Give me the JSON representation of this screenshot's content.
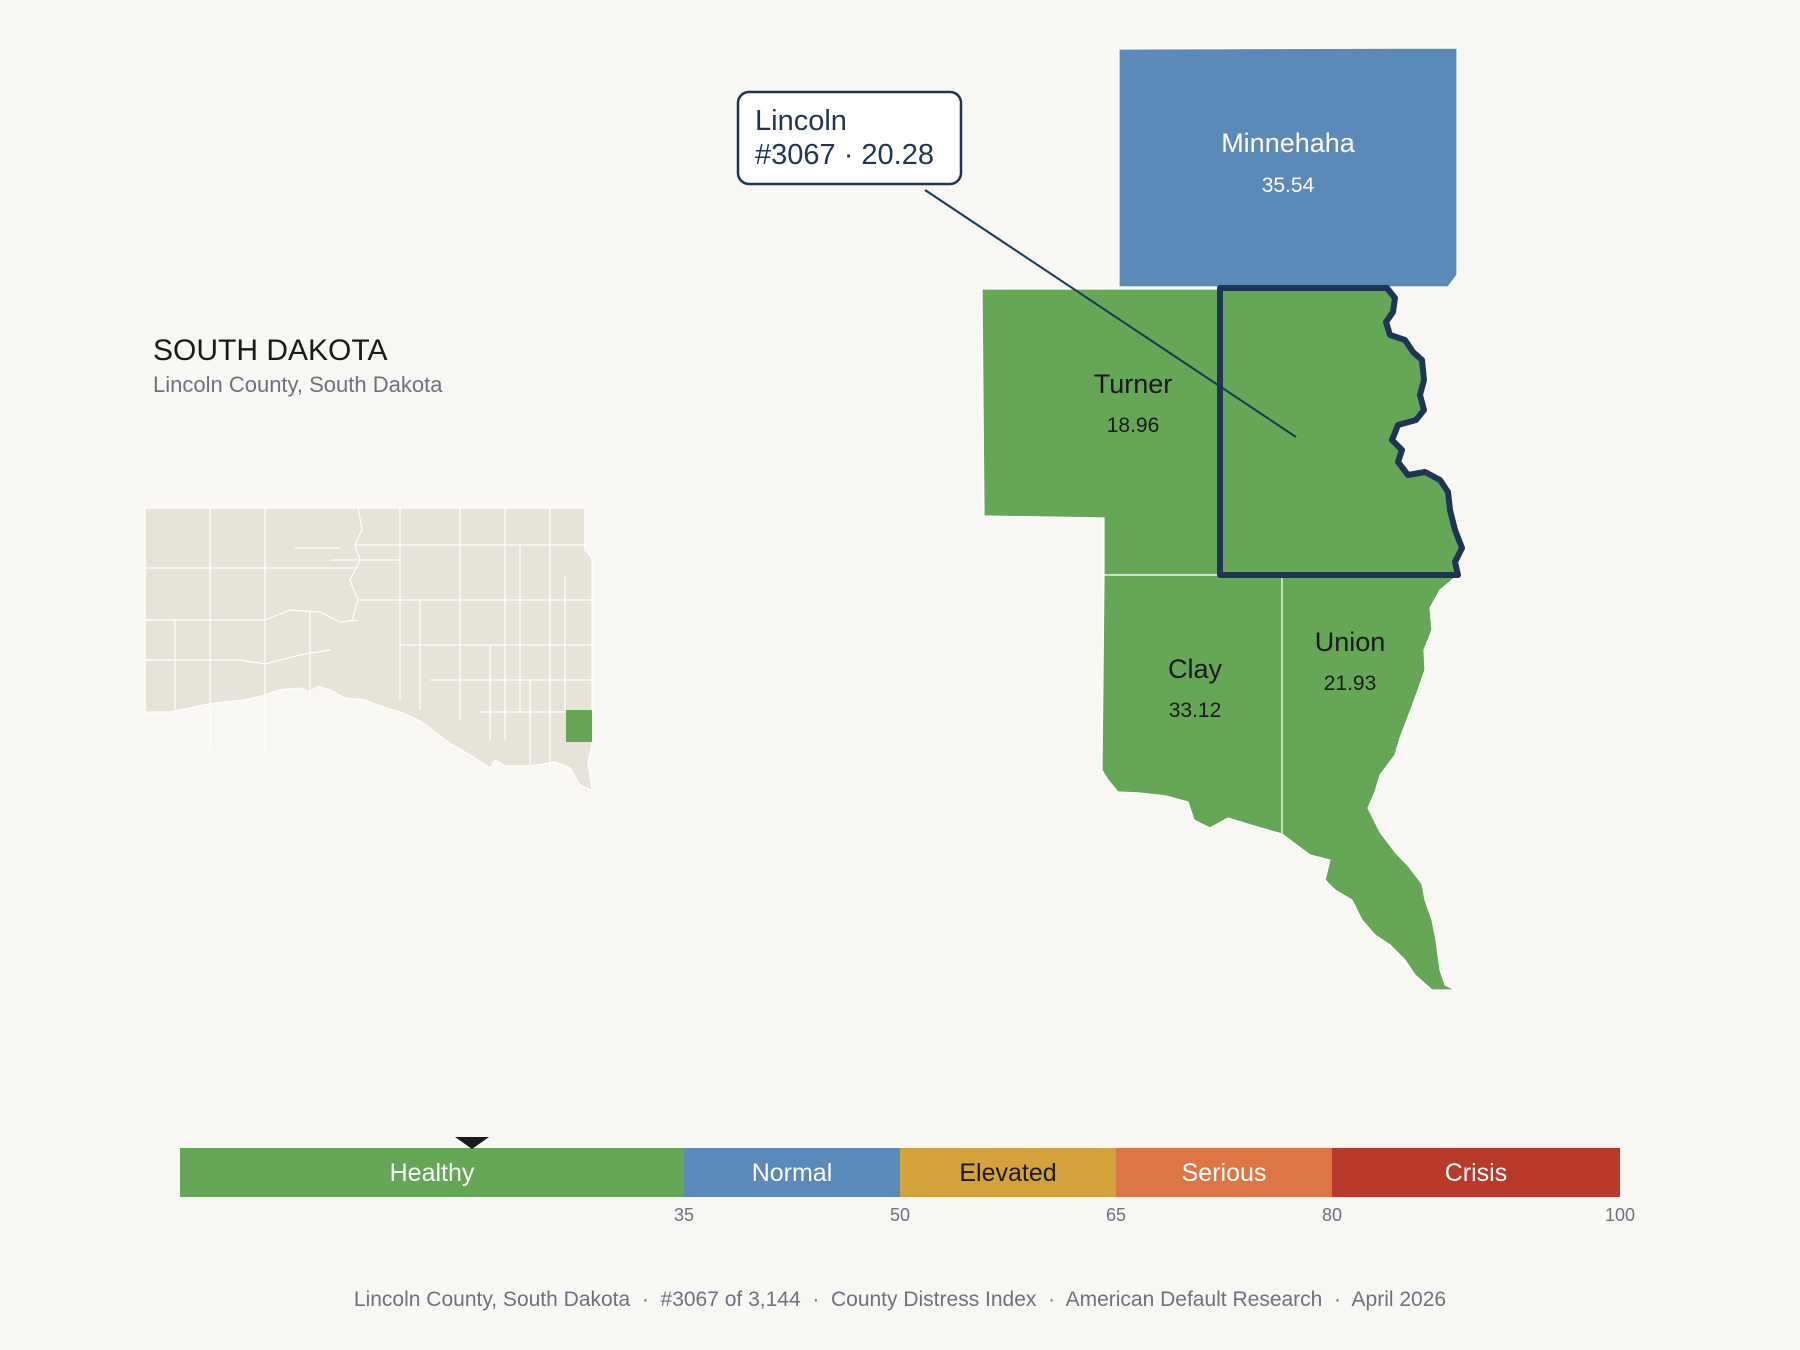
{
  "header": {
    "state": "SOUTH DAKOTA",
    "subtitle": "Lincoln County, South Dakota"
  },
  "callout": {
    "county": "Lincoln",
    "detail": "#3067 · 20.28"
  },
  "counties": [
    {
      "id": "minnehaha",
      "name": "Minnehaha",
      "value": "35.54",
      "color": "#5b8ab9"
    },
    {
      "id": "turner",
      "name": "Turner",
      "value": "18.96",
      "color": "#66a657"
    },
    {
      "id": "lincoln",
      "name": "Lincoln",
      "value": "20.28",
      "color": "#66a657",
      "selected": true
    },
    {
      "id": "clay",
      "name": "Clay",
      "value": "33.12",
      "color": "#66a657"
    },
    {
      "id": "union",
      "name": "Union",
      "value": "21.93",
      "color": "#66a657"
    }
  ],
  "scale": {
    "marker_value": 20.28,
    "min": 0,
    "max": 100,
    "bands": [
      {
        "label": "Healthy",
        "from": 0,
        "to": 35,
        "color": "#66a657",
        "text_color": "#ffffff"
      },
      {
        "label": "Normal",
        "from": 35,
        "to": 50,
        "color": "#5b8ab9",
        "text_color": "#ffffff"
      },
      {
        "label": "Elevated",
        "from": 50,
        "to": 65,
        "color": "#d4a23a",
        "text_color": "#1a1a1a"
      },
      {
        "label": "Serious",
        "from": 65,
        "to": 80,
        "color": "#dc7745",
        "text_color": "#ffffff"
      },
      {
        "label": "Crisis",
        "from": 80,
        "to": 100,
        "color": "#b93a2b",
        "text_color": "#ffffff"
      }
    ],
    "ticks": [
      "35",
      "50",
      "65",
      "80",
      "100"
    ]
  },
  "footer": {
    "text": "Lincoln County, South Dakota  ·  #3067 of 3,144  ·  County Distress Index  ·  American Default Research  ·  April 2026"
  },
  "colors": {
    "background": "#f9f7f3",
    "state_fill": "#e8e3d8",
    "highlight": "#1e3556",
    "healthy": "#66a657",
    "normal": "#5b8ab9"
  }
}
